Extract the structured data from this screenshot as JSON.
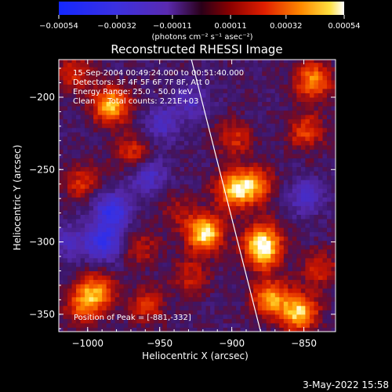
{
  "chart_data": {
    "type": "heatmap",
    "title": "Reconstructed RHESSI Image",
    "xlabel": "Heliocentric X (arcsec)",
    "ylabel": "Heliocentric Y (arcsec)",
    "xlim": [
      -1020,
      -828
    ],
    "ylim": [
      -362,
      -174
    ],
    "x_ticks": [
      -1000,
      -950,
      -900,
      -850
    ],
    "x_tick_labels": [
      "−1000",
      "−950",
      "−900",
      "−850"
    ],
    "y_ticks": [
      -200,
      -250,
      -300,
      -350
    ],
    "y_tick_labels": [
      "−200",
      "−250",
      "−300",
      "−350"
    ],
    "colorbar": {
      "range": [
        -0.00054,
        0.00054
      ],
      "ticks": [
        -0.00054,
        -0.00032,
        -0.00011,
        0.00011,
        0.00032,
        0.00054
      ],
      "tick_labels": [
        "−0.00054",
        "−0.00032",
        "−0.00011",
        "0.00011",
        "0.00032",
        "0.00054"
      ],
      "unit_label": "(photons cm⁻² s⁻¹ asec⁻²)"
    },
    "annotations": {
      "line1": "15-Sep-2004 00:49:24.000 to 00:51:40.000",
      "line2": "Detectors: 3F 4F 5F 6F 7F 8F, Att 0",
      "line3": "Energy Range: 25.0 - 50.0 keV",
      "line4": "Clean     Total counts: 2.21E+03",
      "peak": "Position of Peak = [-881,-332]"
    },
    "limb_line": {
      "x": [
        -928,
        -880
      ],
      "y": [
        -174,
        -362
      ]
    },
    "peak_position": [
      -881,
      -332
    ],
    "bright_regions": [
      {
        "x": -920,
        "y": -295,
        "value": 0.00048
      },
      {
        "x": -880,
        "y": -300,
        "value": 0.00036
      },
      {
        "x": -900,
        "y": -265,
        "value": 0.0004
      },
      {
        "x": -885,
        "y": -262,
        "value": 0.0003
      },
      {
        "x": -985,
        "y": -207,
        "value": 0.00042
      },
      {
        "x": -970,
        "y": -240,
        "value": 0.00022
      },
      {
        "x": -1005,
        "y": -260,
        "value": 0.0002
      },
      {
        "x": -845,
        "y": -190,
        "value": 0.00034
      },
      {
        "x": -850,
        "y": -225,
        "value": 0.00024
      },
      {
        "x": -855,
        "y": -350,
        "value": 0.00044
      },
      {
        "x": -875,
        "y": -340,
        "value": 0.00036
      },
      {
        "x": -840,
        "y": -320,
        "value": 0.0002
      },
      {
        "x": -880,
        "y": -310,
        "value": 0.00026
      },
      {
        "x": -995,
        "y": -335,
        "value": 0.00032
      },
      {
        "x": -1005,
        "y": -345,
        "value": 0.00026
      },
      {
        "x": -960,
        "y": -345,
        "value": 0.0002
      },
      {
        "x": -965,
        "y": -305,
        "value": 0.00016
      },
      {
        "x": -930,
        "y": -325,
        "value": 0.00018
      },
      {
        "x": -1010,
        "y": -185,
        "value": 0.0002
      },
      {
        "x": -900,
        "y": -230,
        "value": 0.0002
      },
      {
        "x": -940,
        "y": -280,
        "value": 0.00012
      }
    ],
    "dark_regions": [
      {
        "x": -985,
        "y": -280,
        "value": -0.00032
      },
      {
        "x": -990,
        "y": -302,
        "value": -0.0003
      },
      {
        "x": -960,
        "y": -255,
        "value": -0.00022
      },
      {
        "x": -950,
        "y": -220,
        "value": -0.00018
      },
      {
        "x": -930,
        "y": -205,
        "value": -0.00016
      },
      {
        "x": -850,
        "y": -270,
        "value": -0.00018
      },
      {
        "x": -1015,
        "y": -300,
        "value": -0.00016
      }
    ]
  },
  "footer": {
    "date": "3-May-2022 15:58"
  }
}
